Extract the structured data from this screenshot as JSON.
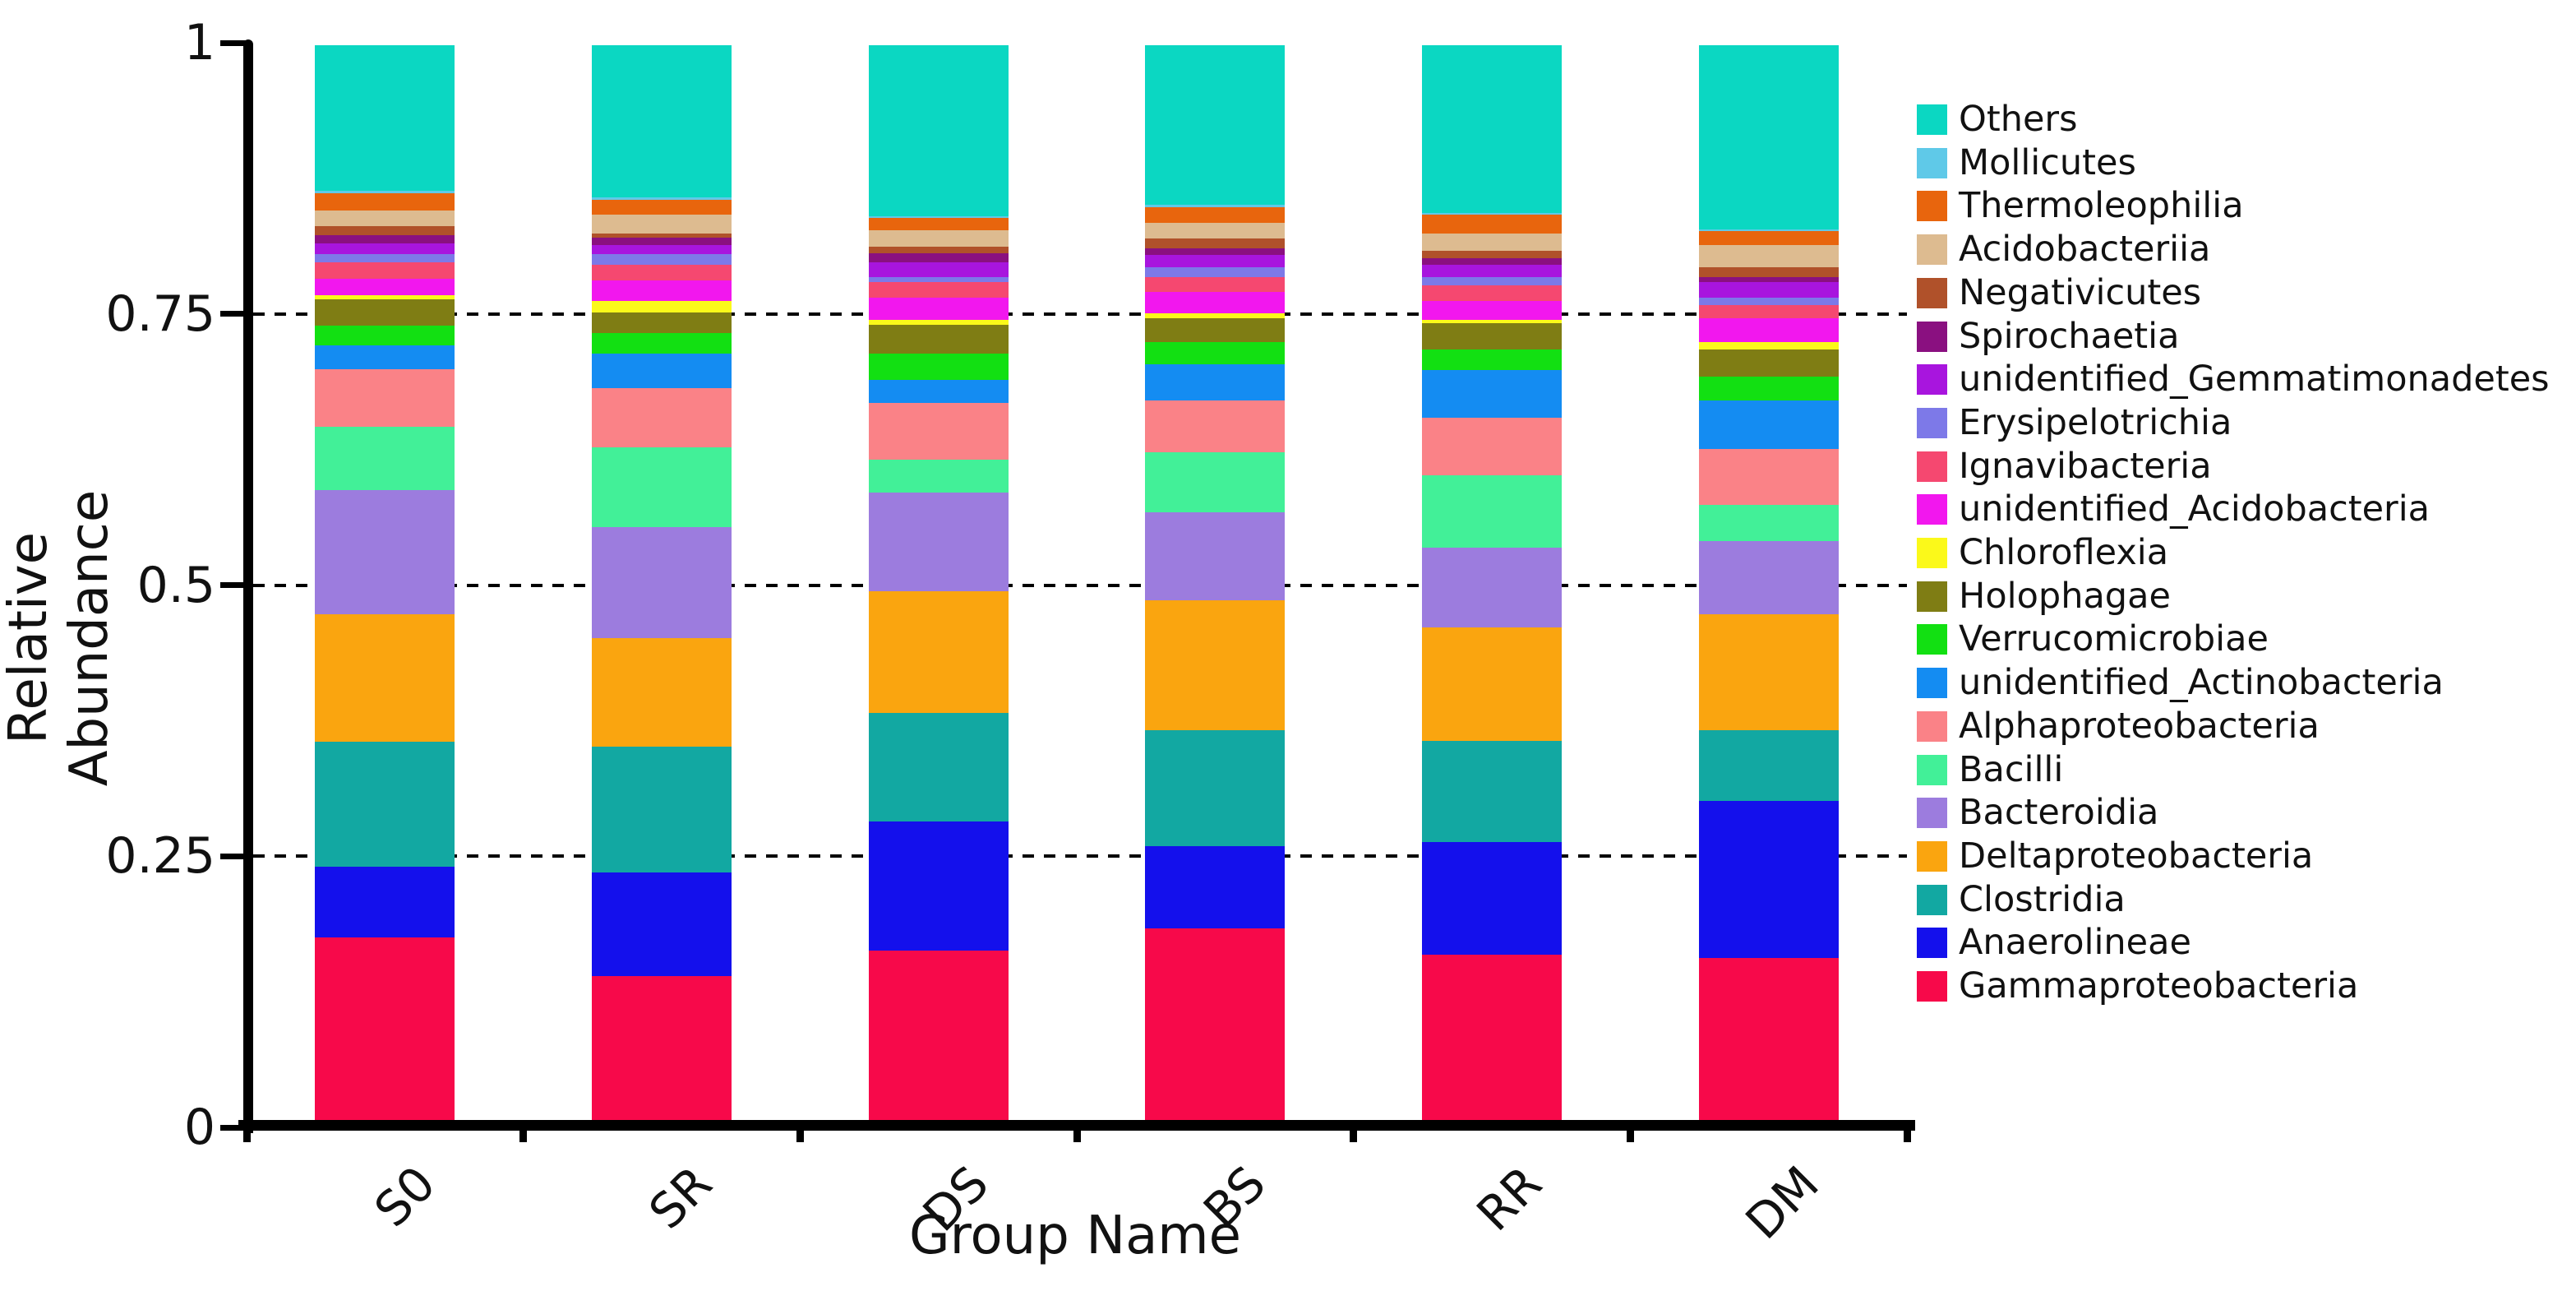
{
  "figure": {
    "background": "#ffffff"
  },
  "chart_data": {
    "type": "bar",
    "stacked": true,
    "title": "",
    "xlabel": "Group Name",
    "ylabel": "Relative Abundance",
    "ylim": [
      0,
      1
    ],
    "yticks": [
      0,
      0.25,
      0.5,
      0.75,
      1
    ],
    "ytick_labels": [
      "0",
      "0.25",
      "0.5",
      "0.75",
      "1"
    ],
    "gridlines": {
      "values": [
        0.25,
        0.5,
        0.75
      ],
      "style": "dashed",
      "color": "#000000",
      "behind_bars": true
    },
    "legend_position": "right",
    "legend_order": "top-of-stack-first",
    "categories": [
      "S0",
      "SR",
      "DS",
      "BS",
      "RR",
      "DM"
    ],
    "series": [
      {
        "name": "Gammaproteobacteria",
        "color": "#F7094A",
        "values": [
          0.178,
          0.142,
          0.166,
          0.186,
          0.162,
          0.159
        ]
      },
      {
        "name": "Anaerolineae",
        "color": "#1410EC",
        "values": [
          0.065,
          0.096,
          0.119,
          0.076,
          0.104,
          0.145
        ]
      },
      {
        "name": "Clostridia",
        "color": "#12A8A2",
        "values": [
          0.115,
          0.116,
          0.1,
          0.107,
          0.093,
          0.065
        ]
      },
      {
        "name": "Deltaproteobacteria",
        "color": "#FAA50F",
        "values": [
          0.118,
          0.1,
          0.112,
          0.12,
          0.105,
          0.107
        ]
      },
      {
        "name": "Bacteroidia",
        "color": "#9C7CDE",
        "values": [
          0.114,
          0.102,
          0.091,
          0.081,
          0.073,
          0.067
        ]
      },
      {
        "name": "Bacilli",
        "color": "#42F098",
        "values": [
          0.059,
          0.074,
          0.03,
          0.055,
          0.067,
          0.034
        ]
      },
      {
        "name": "Alphaproteobacteria",
        "color": "#FA8287",
        "values": [
          0.053,
          0.054,
          0.053,
          0.048,
          0.053,
          0.051
        ]
      },
      {
        "name": "unidentified_Actinobacteria",
        "color": "#148CF2",
        "values": [
          0.022,
          0.032,
          0.021,
          0.033,
          0.044,
          0.045
        ]
      },
      {
        "name": "Verrucomicrobiae",
        "color": "#12E012",
        "values": [
          0.018,
          0.019,
          0.024,
          0.021,
          0.019,
          0.022
        ]
      },
      {
        "name": "Holophagae",
        "color": "#7F7D14",
        "values": [
          0.024,
          0.019,
          0.027,
          0.022,
          0.024,
          0.025
        ]
      },
      {
        "name": "Chloroflexia",
        "color": "#FBF91A",
        "values": [
          0.004,
          0.011,
          0.004,
          0.004,
          0.003,
          0.007
        ]
      },
      {
        "name": "unidentified_Acidobacteria",
        "color": "#F217EE",
        "values": [
          0.015,
          0.019,
          0.021,
          0.02,
          0.018,
          0.022
        ]
      },
      {
        "name": "Ignavibacteria",
        "color": "#F54870",
        "values": [
          0.015,
          0.014,
          0.014,
          0.014,
          0.014,
          0.012
        ]
      },
      {
        "name": "Erysipelotrichia",
        "color": "#7D79E8",
        "values": [
          0.008,
          0.01,
          0.005,
          0.009,
          0.008,
          0.007
        ]
      },
      {
        "name": "unidentified_Gemmatimonadetes",
        "color": "#A815DE",
        "values": [
          0.01,
          0.008,
          0.013,
          0.011,
          0.011,
          0.014
        ]
      },
      {
        "name": "Spirochaetia",
        "color": "#8A1080",
        "values": [
          0.007,
          0.007,
          0.009,
          0.006,
          0.006,
          0.005
        ]
      },
      {
        "name": "Negativicutes",
        "color": "#B0512A",
        "values": [
          0.009,
          0.004,
          0.006,
          0.009,
          0.007,
          0.009
        ]
      },
      {
        "name": "Acidobacteriia",
        "color": "#DDBB90",
        "values": [
          0.014,
          0.017,
          0.015,
          0.015,
          0.016,
          0.02
        ]
      },
      {
        "name": "Thermoleophilia",
        "color": "#E8650D",
        "values": [
          0.016,
          0.014,
          0.011,
          0.014,
          0.017,
          0.013
        ]
      },
      {
        "name": "Mollicutes",
        "color": "#5FC9E8",
        "values": [
          0.002,
          0.002,
          0.002,
          0.002,
          0.002,
          0.002
        ]
      },
      {
        "name": "Others",
        "color": "#0BD7C2",
        "values": [
          0.134,
          0.14,
          0.157,
          0.147,
          0.154,
          0.169
        ]
      }
    ]
  }
}
